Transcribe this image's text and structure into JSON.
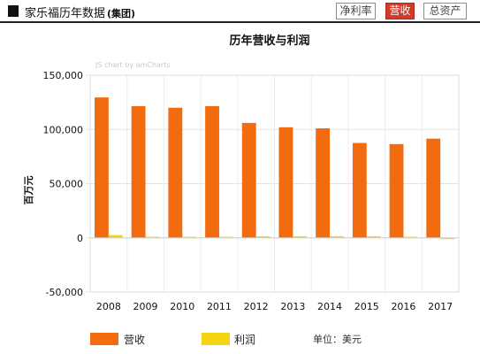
{
  "header": {
    "title": "家乐福历年数据",
    "subtitle": "(集团)",
    "tabs": [
      {
        "label": "净利率",
        "active": false
      },
      {
        "label": "营收",
        "active": true
      },
      {
        "label": "总资产",
        "active": false
      }
    ]
  },
  "watermark": "JS chart by amCharts",
  "unit_text": "单位：美元",
  "colors": {
    "revenue": "#f26b0f",
    "profit": "#f5d511",
    "tab_active": "#d23a2a"
  },
  "chart_data": {
    "type": "bar",
    "title": "历年营收与利润",
    "xlabel": "",
    "ylabel": "百万元",
    "categories": [
      "2008",
      "2009",
      "2010",
      "2011",
      "2012",
      "2013",
      "2014",
      "2015",
      "2016",
      "2017"
    ],
    "series": [
      {
        "name": "营收",
        "values": [
          129500,
          121500,
          120000,
          121500,
          106000,
          102000,
          101000,
          87500,
          86500,
          91500
        ]
      },
      {
        "name": "利润",
        "values": [
          2500,
          1000,
          1000,
          1000,
          1500,
          1500,
          1500,
          1500,
          1000,
          -500
        ]
      }
    ],
    "ylim": [
      -50000,
      150000
    ],
    "yticks": [
      "150,000",
      "100,000",
      "50,000",
      "0",
      "-50,000"
    ],
    "ytick_values": [
      150000,
      100000,
      50000,
      0,
      -50000
    ],
    "grid": true,
    "legend_position": "bottom"
  }
}
